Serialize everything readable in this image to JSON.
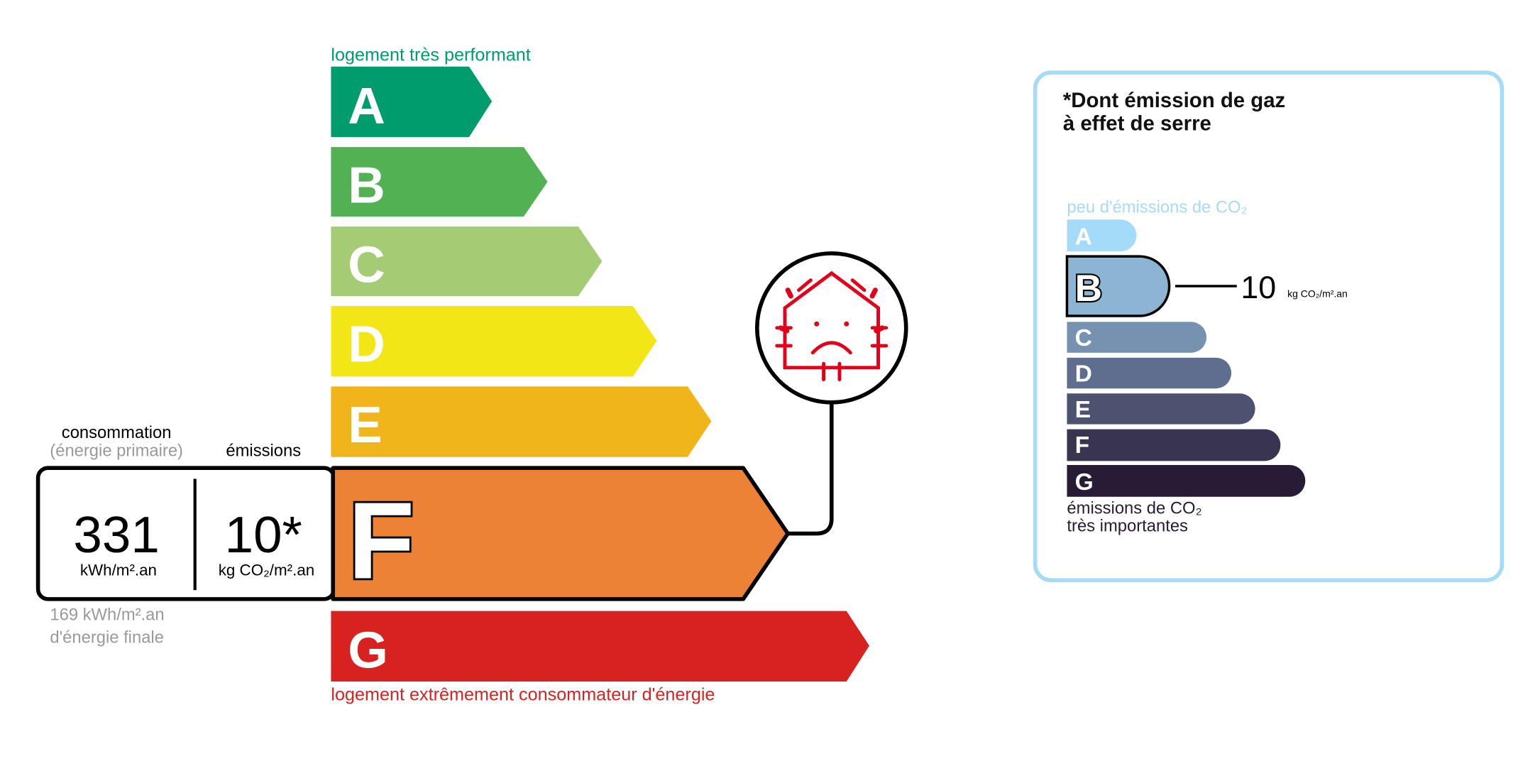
{
  "energy_label": {
    "top_caption": "logement très performant",
    "bottom_caption": "logement extrêmement consommateur d'énergie",
    "classes": [
      {
        "letter": "A",
        "color": "#009c6d"
      },
      {
        "letter": "B",
        "color": "#52b153"
      },
      {
        "letter": "C",
        "color": "#a5cc74"
      },
      {
        "letter": "D",
        "color": "#f2e617"
      },
      {
        "letter": "E",
        "color": "#f0b51b"
      },
      {
        "letter": "F",
        "color": "#eb8235"
      },
      {
        "letter": "G",
        "color": "#d7221f"
      }
    ],
    "current_class": "F",
    "consumption_label": "consommation",
    "consumption_sublabel": "(énergie primaire)",
    "emissions_label": "émissions",
    "consumption_value": "331",
    "consumption_unit": "kWh/m².an",
    "emissions_value": "10*",
    "emissions_unit": "kg CO₂/m².an",
    "final_energy_value": "169 kWh/m².an",
    "final_energy_label": "d'énergie finale",
    "badge_icon": "poorly-insulated-house-sad-face-icon",
    "badge_color": "#e2001a"
  },
  "ghg_label": {
    "title_line1": "*Dont émission de gaz",
    "title_line2": "à effet de serre",
    "top_caption": "peu d'émissions de CO₂",
    "bottom_caption_line1": "émissions de CO₂",
    "bottom_caption_line2": "très importantes",
    "classes": [
      {
        "letter": "A",
        "color": "#a4dbf8"
      },
      {
        "letter": "B",
        "color": "#8cb4d3"
      },
      {
        "letter": "C",
        "color": "#7792b1"
      },
      {
        "letter": "D",
        "color": "#5f6e8f"
      },
      {
        "letter": "E",
        "color": "#4d5271"
      },
      {
        "letter": "F",
        "color": "#393551"
      },
      {
        "letter": "G",
        "color": "#281b35"
      }
    ],
    "current_class": "B",
    "value": "10",
    "unit": "kg CO₂/m².an",
    "border_color": "#a6dbf5"
  }
}
